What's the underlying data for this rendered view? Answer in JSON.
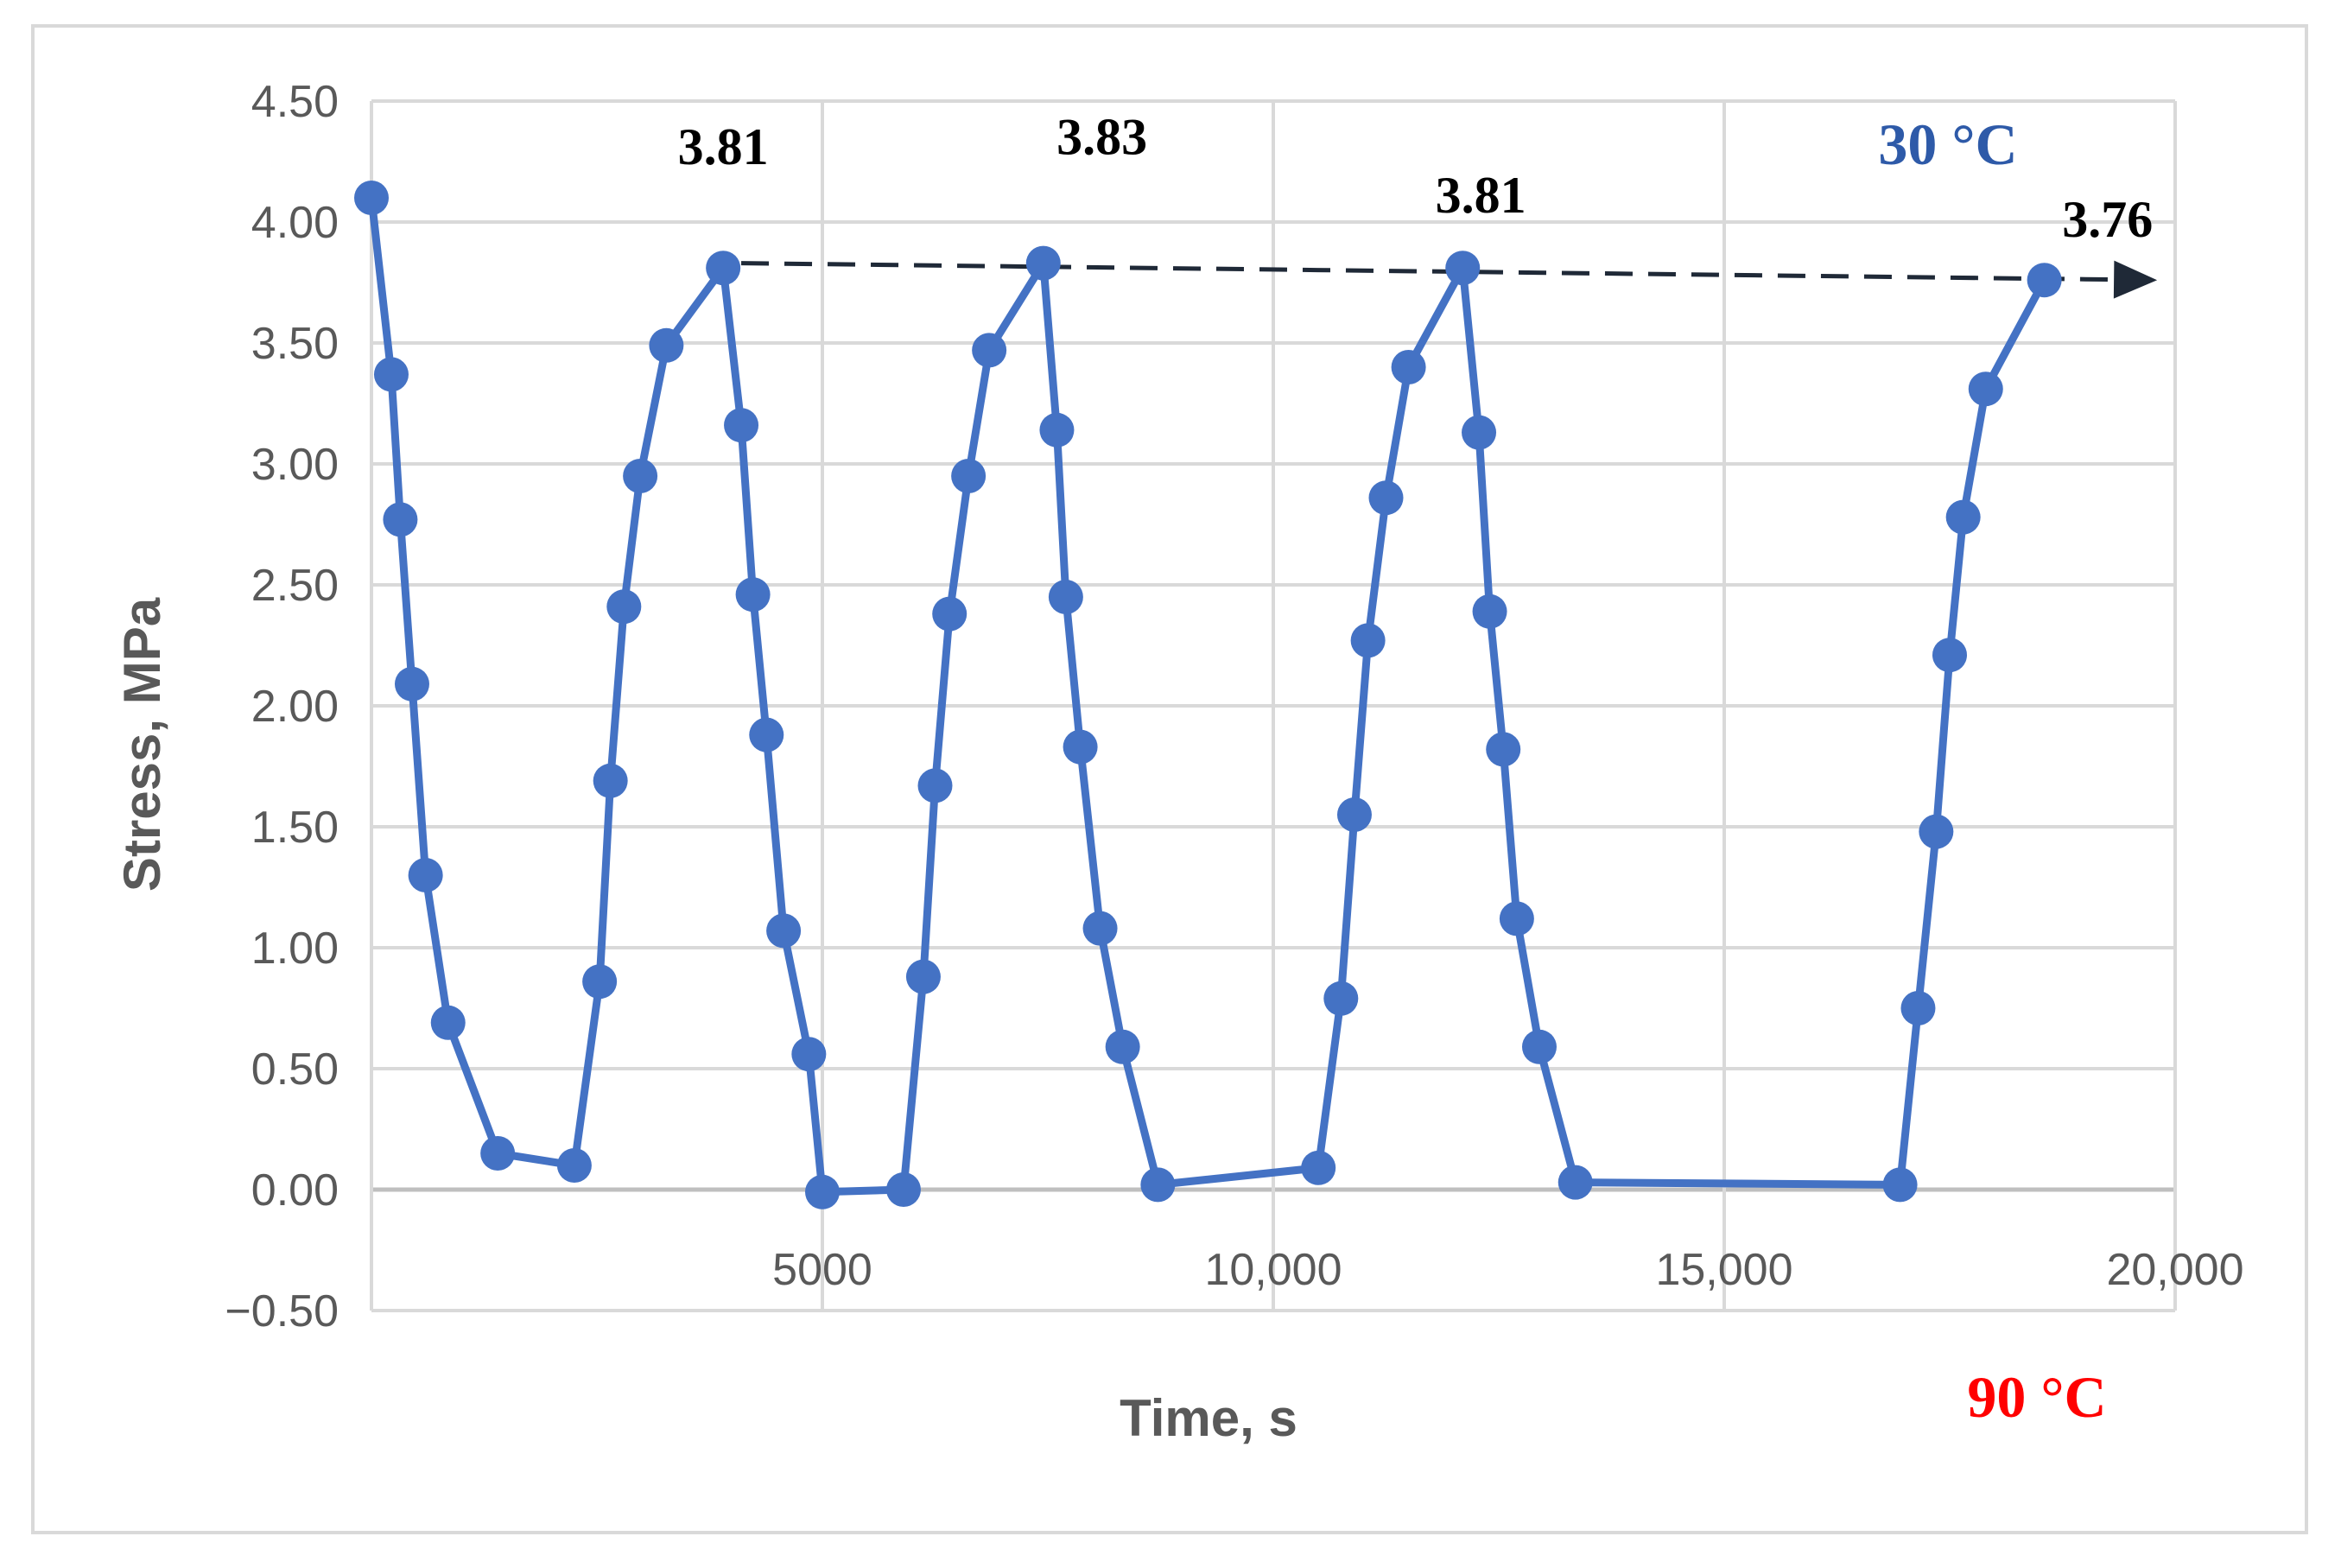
{
  "chart_data": {
    "type": "scatter",
    "xlabel": "Time, s",
    "ylabel": "Stress, MPa",
    "xlim": [
      0,
      20000
    ],
    "ylim": [
      -0.5,
      4.5
    ],
    "x_ticks": [
      5000,
      10000,
      15000,
      20000
    ],
    "x_tick_labels": [
      "5000",
      "10,000",
      "15,000",
      "20,000"
    ],
    "y_ticks": [
      4.5,
      4.0,
      3.5,
      3.0,
      2.5,
      2.0,
      1.5,
      1.0,
      0.5,
      0.0,
      -0.5
    ],
    "y_tick_labels": [
      "4.50",
      "4.00",
      "3.50",
      "3.00",
      "2.50",
      "2.00",
      "1.50",
      "1.00",
      "0.50",
      "0.00",
      "−0.50"
    ],
    "grid": true,
    "series": [
      {
        "name": "Stress",
        "color": "#4472c4",
        "x": [
          0,
          220,
          320,
          450,
          600,
          850,
          1400,
          2250,
          2530,
          2650,
          2800,
          2980,
          3270,
          3900,
          4100,
          4230,
          4380,
          4570,
          4850,
          5000,
          5900,
          6120,
          6250,
          6410,
          6620,
          6850,
          7450,
          7600,
          7700,
          7860,
          8080,
          8330,
          8720,
          10500,
          10750,
          10900,
          11050,
          11250,
          11500,
          12100,
          12280,
          12400,
          12550,
          12700,
          12950,
          13350,
          16950,
          17150,
          17350,
          17500,
          17650,
          17900,
          18550
        ],
        "y": [
          4.1,
          3.37,
          2.77,
          2.09,
          1.3,
          0.69,
          0.15,
          0.1,
          0.86,
          1.69,
          2.41,
          2.95,
          3.49,
          3.81,
          3.16,
          2.46,
          1.88,
          1.07,
          0.56,
          -0.01,
          0.0,
          0.88,
          1.67,
          2.38,
          2.95,
          3.47,
          3.83,
          3.14,
          2.45,
          1.83,
          1.08,
          0.59,
          0.02,
          0.09,
          0.79,
          1.55,
          2.27,
          2.86,
          3.4,
          3.81,
          3.13,
          2.39,
          1.82,
          1.12,
          0.59,
          0.03,
          0.02,
          0.75,
          1.48,
          2.21,
          2.78,
          3.31,
          3.76
        ]
      }
    ],
    "trend_arrow": {
      "from": [
        4100,
        3.83
      ],
      "to": [
        19800,
        3.76
      ],
      "style": "dashed",
      "color": "#1f2937"
    },
    "annotations": [
      {
        "text": "3.81",
        "x": 3900,
        "y": 4.24
      },
      {
        "text": "3.83",
        "x": 8100,
        "y": 4.28
      },
      {
        "text": "3.81",
        "x": 12300,
        "y": 4.04
      },
      {
        "text": "3.76",
        "x": 19250,
        "y": 3.94
      }
    ],
    "temperature_labels": [
      {
        "text": "30 °C",
        "color": "#2e5aa8"
      },
      {
        "text": "90 °C",
        "color": "#ff0000"
      }
    ]
  }
}
